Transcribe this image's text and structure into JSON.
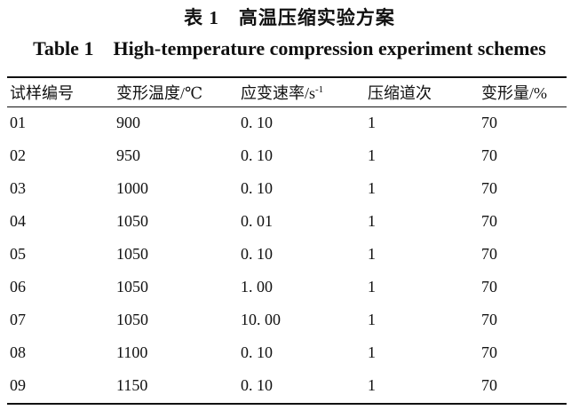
{
  "caption": {
    "cn": "表 1　高温压缩实验方案",
    "en_label": "Table 1",
    "en_title": "High-temperature compression experiment schemes"
  },
  "table": {
    "headers": [
      "试样编号",
      "变形温度/℃",
      "应变速率/s",
      "压缩道次",
      "变形量/%"
    ],
    "strain_rate_exponent": "-1",
    "rows": [
      [
        "01",
        "900",
        "0. 10",
        "1",
        "70"
      ],
      [
        "02",
        "950",
        "0. 10",
        "1",
        "70"
      ],
      [
        "03",
        "1000",
        "0. 10",
        "1",
        "70"
      ],
      [
        "04",
        "1050",
        "0. 01",
        "1",
        "70"
      ],
      [
        "05",
        "1050",
        "0. 10",
        "1",
        "70"
      ],
      [
        "06",
        "1050",
        "1. 00",
        "1",
        "70"
      ],
      [
        "07",
        "1050",
        "10. 00",
        "1",
        "70"
      ],
      [
        "08",
        "1100",
        "0. 10",
        "1",
        "70"
      ],
      [
        "09",
        "1150",
        "0. 10",
        "1",
        "70"
      ]
    ]
  }
}
